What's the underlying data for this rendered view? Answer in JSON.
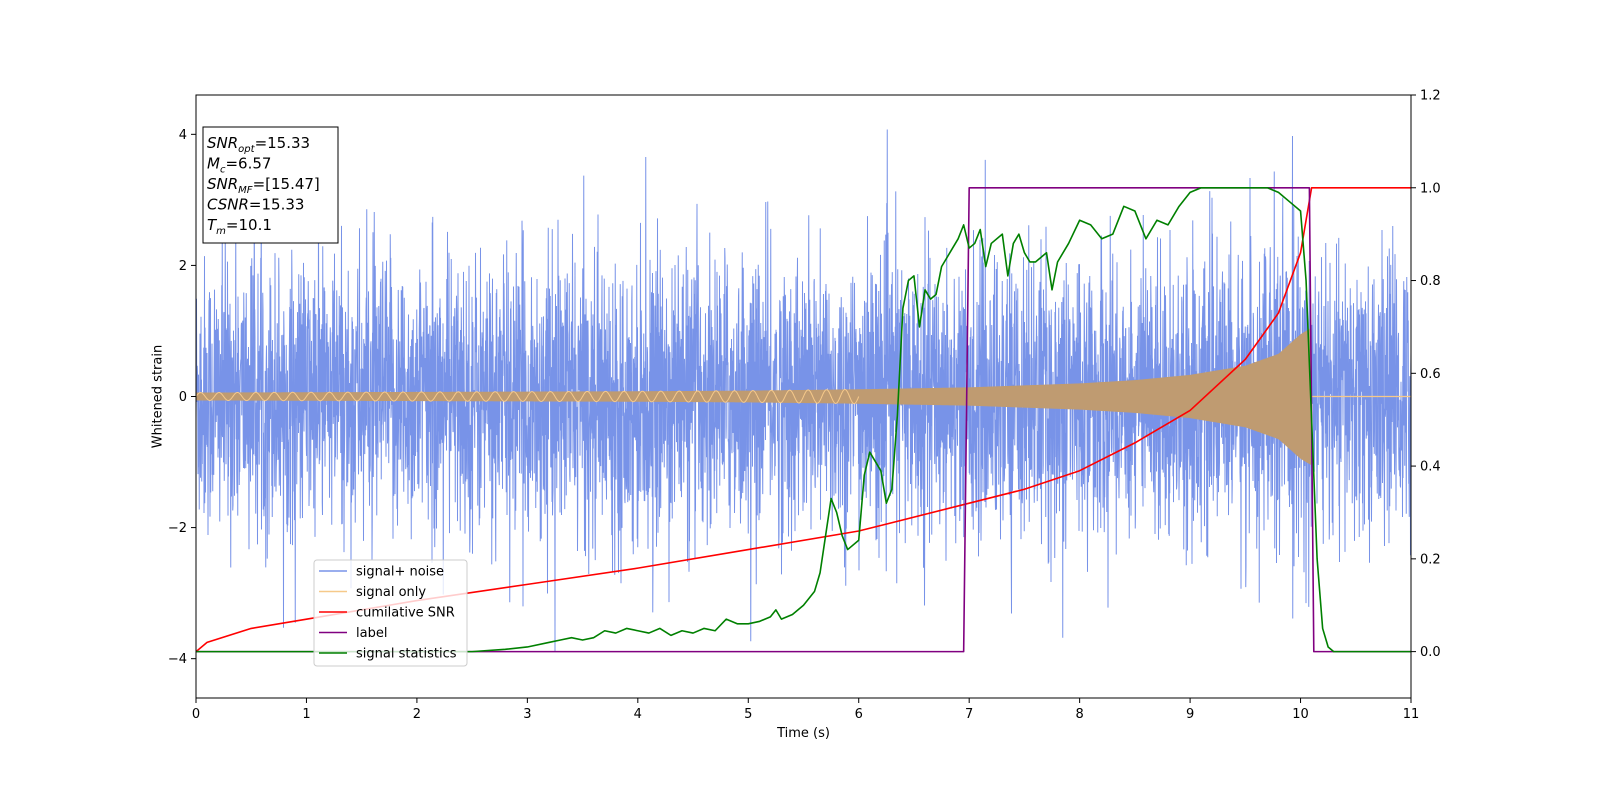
{
  "chart_data": {
    "type": "line",
    "title": "",
    "xlabel": "Time (s)",
    "ylabel": "Whitened strain",
    "xlim": [
      0,
      11
    ],
    "ylim_left": [
      -4.6,
      4.6
    ],
    "ylim_right": [
      -0.1,
      1.2
    ],
    "x_ticks": [
      "0",
      "1",
      "2",
      "3",
      "4",
      "5",
      "6",
      "7",
      "8",
      "9",
      "10",
      "11"
    ],
    "y_ticks_left": [
      "−4",
      "−2",
      "0",
      "2",
      "4"
    ],
    "y_ticks_right": [
      "0.0",
      "0.2",
      "0.4",
      "0.6",
      "0.8",
      "1.0",
      "1.2"
    ],
    "grid": false,
    "legend_position": "lower-left",
    "annotation": {
      "lines": [
        {
          "base": "SNR",
          "sub": "opt",
          "value": "=15.33"
        },
        {
          "base": "M",
          "sub": "c",
          "value": "=6.57"
        },
        {
          "base": "SNR",
          "sub": "MF",
          "value": "=[15.47]"
        },
        {
          "base": "CSNR",
          "sub": "",
          "value": "=15.33"
        },
        {
          "base": "T",
          "sub": "m",
          "value": "=10.1"
        }
      ]
    },
    "series": [
      {
        "name": "signal+ noise",
        "color": "#7893e8",
        "axis": "left",
        "noise_std": 1.05,
        "x_range": [
          0,
          11
        ]
      },
      {
        "name": "signal only",
        "color": "#f6c98a",
        "fill_color": "#bf9b71",
        "axis": "left",
        "envelope": {
          "x": [
            0,
            1,
            2,
            3,
            4,
            5,
            6,
            7,
            7.5,
            8,
            8.5,
            9,
            9.5,
            9.8,
            10.0,
            10.1
          ],
          "y": [
            0.06,
            0.065,
            0.07,
            0.075,
            0.08,
            0.09,
            0.11,
            0.14,
            0.17,
            0.2,
            0.25,
            0.33,
            0.47,
            0.65,
            0.95,
            1.05
          ]
        },
        "end_x": 10.1
      },
      {
        "name": "cumilative SNR",
        "color": "#ff0000",
        "axis": "right",
        "x": [
          0,
          0.1,
          0.5,
          1,
          2,
          3,
          4,
          5,
          6,
          7,
          7.5,
          8,
          8.5,
          9,
          9.5,
          9.8,
          10.0,
          10.05,
          10.1,
          10.12,
          11
        ],
        "y": [
          0.0,
          0.02,
          0.05,
          0.07,
          0.11,
          0.145,
          0.18,
          0.22,
          0.26,
          0.32,
          0.35,
          0.39,
          0.45,
          0.52,
          0.63,
          0.73,
          0.86,
          0.93,
          1.0,
          1.0,
          1.0
        ]
      },
      {
        "name": "label",
        "color": "#800080",
        "axis": "right",
        "x": [
          0,
          6.95,
          7.0,
          10.08,
          10.12,
          11
        ],
        "y": [
          0.0,
          0.0,
          1.0,
          1.0,
          0.0,
          0.0
        ]
      },
      {
        "name": "signal statistics",
        "color": "#008000",
        "axis": "right",
        "x": [
          0,
          2.5,
          2.8,
          3.0,
          3.2,
          3.3,
          3.4,
          3.5,
          3.6,
          3.7,
          3.8,
          3.9,
          4.0,
          4.1,
          4.2,
          4.3,
          4.4,
          4.5,
          4.6,
          4.7,
          4.8,
          4.9,
          5.0,
          5.1,
          5.2,
          5.25,
          5.3,
          5.4,
          5.5,
          5.6,
          5.65,
          5.7,
          5.75,
          5.8,
          5.85,
          5.9,
          6.0,
          6.05,
          6.1,
          6.2,
          6.25,
          6.3,
          6.35,
          6.4,
          6.45,
          6.5,
          6.55,
          6.6,
          6.65,
          6.7,
          6.75,
          6.8,
          6.85,
          6.9,
          6.95,
          7.0,
          7.05,
          7.1,
          7.15,
          7.2,
          7.3,
          7.35,
          7.4,
          7.45,
          7.5,
          7.55,
          7.6,
          7.7,
          7.75,
          7.8,
          7.9,
          8.0,
          8.1,
          8.2,
          8.3,
          8.4,
          8.5,
          8.6,
          8.7,
          8.8,
          8.9,
          9.0,
          9.1,
          9.2,
          9.3,
          9.4,
          9.5,
          9.6,
          9.7,
          9.8,
          9.9,
          10.0,
          10.05,
          10.1,
          10.15,
          10.2,
          10.25,
          10.3,
          10.4,
          11
        ],
        "y": [
          0.0,
          0.0,
          0.005,
          0.01,
          0.02,
          0.025,
          0.03,
          0.025,
          0.03,
          0.045,
          0.04,
          0.05,
          0.045,
          0.04,
          0.05,
          0.035,
          0.045,
          0.04,
          0.05,
          0.045,
          0.07,
          0.06,
          0.06,
          0.065,
          0.075,
          0.09,
          0.07,
          0.08,
          0.1,
          0.13,
          0.17,
          0.25,
          0.33,
          0.3,
          0.25,
          0.22,
          0.24,
          0.38,
          0.43,
          0.39,
          0.32,
          0.35,
          0.51,
          0.74,
          0.8,
          0.81,
          0.7,
          0.78,
          0.76,
          0.77,
          0.83,
          0.85,
          0.87,
          0.89,
          0.92,
          0.87,
          0.88,
          0.91,
          0.83,
          0.88,
          0.9,
          0.81,
          0.88,
          0.9,
          0.86,
          0.84,
          0.84,
          0.86,
          0.78,
          0.84,
          0.88,
          0.93,
          0.92,
          0.89,
          0.9,
          0.96,
          0.95,
          0.89,
          0.93,
          0.92,
          0.96,
          0.99,
          1.0,
          1.0,
          1.0,
          1.0,
          1.0,
          1.0,
          1.0,
          0.99,
          0.97,
          0.95,
          0.8,
          0.5,
          0.2,
          0.05,
          0.01,
          0.0,
          0.0,
          0.0
        ]
      }
    ]
  }
}
